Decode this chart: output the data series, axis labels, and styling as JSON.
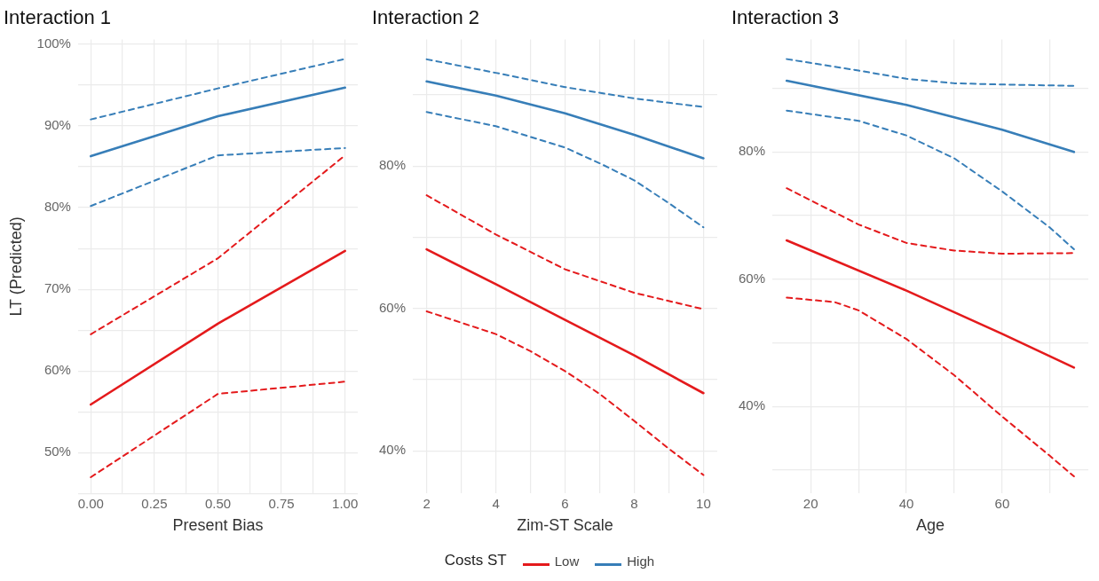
{
  "chart_data": [
    {
      "type": "line",
      "title": "Interaction 1",
      "xlabel": "Present Bias",
      "ylabel": "LT (Predicted)",
      "legend_title": "Costs ST",
      "legend": "bottom",
      "grid": true,
      "marker": "none",
      "xlim": [
        -0.05,
        1.05
      ],
      "xticks": [
        {
          "value": 0,
          "label": "0.00"
        },
        {
          "value": 0.125,
          "label": null
        },
        {
          "value": 0.25,
          "label": "0.25"
        },
        {
          "value": 0.375,
          "label": null
        },
        {
          "value": 0.5,
          "label": "0.50"
        },
        {
          "value": 0.625,
          "label": null
        },
        {
          "value": 0.75,
          "label": "0.75"
        },
        {
          "value": 0.875,
          "label": null
        },
        {
          "value": 1,
          "label": "1.00"
        }
      ],
      "ylim": [
        45,
        100.6
      ],
      "yticks": [
        {
          "value": 45,
          "label": null
        },
        {
          "value": 50,
          "label": "50%"
        },
        {
          "value": 55,
          "label": null
        },
        {
          "value": 60,
          "label": "60%"
        },
        {
          "value": 65,
          "label": null
        },
        {
          "value": 70,
          "label": "70%"
        },
        {
          "value": 75,
          "label": null
        },
        {
          "value": 80,
          "label": "80%"
        },
        {
          "value": 85,
          "label": null
        },
        {
          "value": 90,
          "label": "90%"
        },
        {
          "value": 95,
          "label": null
        },
        {
          "value": 100,
          "label": "100%"
        }
      ],
      "series": [
        {
          "name": "Low",
          "color": "#e41a1c",
          "line_style": "solid",
          "x": [
            0,
            0.5,
            1
          ],
          "values": [
            55.9,
            65.8,
            74.7
          ]
        },
        {
          "color": "#e41a1c",
          "line_style": "dashed",
          "x": [
            0,
            0.5,
            1
          ],
          "values": [
            64.5,
            73.8,
            86.4
          ]
        },
        {
          "color": "#e41a1c",
          "line_style": "dashed",
          "x": [
            0,
            0.5,
            1
          ],
          "values": [
            47.0,
            57.2,
            58.7
          ]
        },
        {
          "name": "High",
          "color": "#377eb8",
          "line_style": "solid",
          "x": [
            0,
            0.5,
            1
          ],
          "values": [
            86.3,
            91.2,
            94.7
          ]
        },
        {
          "color": "#377eb8",
          "line_style": "dashed",
          "x": [
            0,
            0.5,
            1
          ],
          "values": [
            90.8,
            94.6,
            98.2
          ]
        },
        {
          "color": "#377eb8",
          "line_style": "dashed",
          "x": [
            0,
            0.5,
            1
          ],
          "values": [
            80.2,
            86.4,
            87.3
          ]
        }
      ]
    },
    {
      "type": "line",
      "title": "Interaction 2",
      "xlabel": "Zim-ST Scale",
      "grid": true,
      "marker": "none",
      "xlim": [
        1.6,
        10.4
      ],
      "xticks": [
        2,
        {
          "value": 3,
          "label": null
        },
        4,
        {
          "value": 5,
          "label": null
        },
        6,
        {
          "value": 7,
          "label": null
        },
        8,
        {
          "value": 9,
          "label": null
        },
        10
      ],
      "ylim": [
        34,
        97.8
      ],
      "yticks": [
        {
          "value": 40,
          "label": "40%"
        },
        {
          "value": 50,
          "label": null
        },
        {
          "value": 60,
          "label": "60%"
        },
        {
          "value": 70,
          "label": null
        },
        {
          "value": 80,
          "label": "80%"
        },
        {
          "value": 90,
          "label": null
        }
      ],
      "series": [
        {
          "color": "#e41a1c",
          "line_style": "solid",
          "x": [
            2,
            4,
            6,
            8,
            10
          ],
          "values": [
            68.3,
            63.4,
            58.4,
            53.4,
            48.1
          ]
        },
        {
          "color": "#e41a1c",
          "line_style": "dashed",
          "x": [
            2,
            4,
            6,
            8,
            10
          ],
          "values": [
            75.9,
            70.4,
            65.5,
            62.2,
            59.9
          ]
        },
        {
          "color": "#e41a1c",
          "line_style": "dashed",
          "x": [
            2,
            4,
            5,
            6,
            7,
            8,
            9,
            10
          ],
          "values": [
            59.6,
            56.4,
            54.0,
            51.2,
            48.0,
            44.2,
            40.3,
            36.6
          ]
        },
        {
          "color": "#377eb8",
          "line_style": "solid",
          "x": [
            2,
            4,
            6,
            8,
            10
          ],
          "values": [
            91.9,
            89.9,
            87.4,
            84.4,
            81.1
          ]
        },
        {
          "color": "#377eb8",
          "line_style": "dashed",
          "x": [
            2,
            4,
            6,
            8,
            10
          ],
          "values": [
            95.0,
            93.1,
            91.1,
            89.5,
            88.3
          ]
        },
        {
          "color": "#377eb8",
          "line_style": "dashed",
          "x": [
            2,
            4,
            6,
            7,
            8,
            9,
            10
          ],
          "values": [
            87.6,
            85.6,
            82.6,
            80.4,
            78.0,
            74.8,
            71.4
          ]
        }
      ]
    },
    {
      "type": "line",
      "title": "Interaction 3",
      "xlabel": "Age",
      "grid": true,
      "marker": "none",
      "xlim": [
        12,
        78
      ],
      "xticks": [
        20,
        {
          "value": 30,
          "label": null
        },
        40,
        {
          "value": 50,
          "label": null
        },
        60,
        {
          "value": 70,
          "label": null
        }
      ],
      "ylim": [
        26.3,
        97.7
      ],
      "yticks": [
        {
          "value": 30,
          "label": null
        },
        {
          "value": 40,
          "label": "40%"
        },
        {
          "value": 50,
          "label": null
        },
        {
          "value": 60,
          "label": "60%"
        },
        {
          "value": 70,
          "label": null
        },
        {
          "value": 80,
          "label": "80%"
        },
        {
          "value": 90,
          "label": null
        }
      ],
      "series": [
        {
          "color": "#e41a1c",
          "line_style": "solid",
          "x": [
            15,
            40,
            60,
            75
          ],
          "values": [
            66.1,
            58.2,
            51.4,
            46.1
          ]
        },
        {
          "color": "#e41a1c",
          "line_style": "dashed",
          "x": [
            15,
            30,
            40,
            50,
            60,
            75
          ],
          "values": [
            74.3,
            68.6,
            65.7,
            64.5,
            64.0,
            64.1
          ]
        },
        {
          "color": "#e41a1c",
          "line_style": "dashed",
          "x": [
            15,
            25,
            30,
            40,
            50,
            60,
            70,
            75
          ],
          "values": [
            57.1,
            56.4,
            55.1,
            50.6,
            44.9,
            38.4,
            32.2,
            29.0
          ]
        },
        {
          "color": "#377eb8",
          "line_style": "solid",
          "x": [
            15,
            40,
            60,
            75
          ],
          "values": [
            91.2,
            87.4,
            83.5,
            80.0
          ]
        },
        {
          "color": "#377eb8",
          "line_style": "dashed",
          "x": [
            15,
            30,
            40,
            50,
            60,
            75
          ],
          "values": [
            94.6,
            92.8,
            91.5,
            90.8,
            90.6,
            90.4
          ]
        },
        {
          "color": "#377eb8",
          "line_style": "dashed",
          "x": [
            15,
            30,
            40,
            50,
            60,
            70,
            75
          ],
          "values": [
            86.5,
            84.9,
            82.6,
            79.0,
            73.8,
            68.1,
            64.7
          ]
        }
      ]
    }
  ]
}
